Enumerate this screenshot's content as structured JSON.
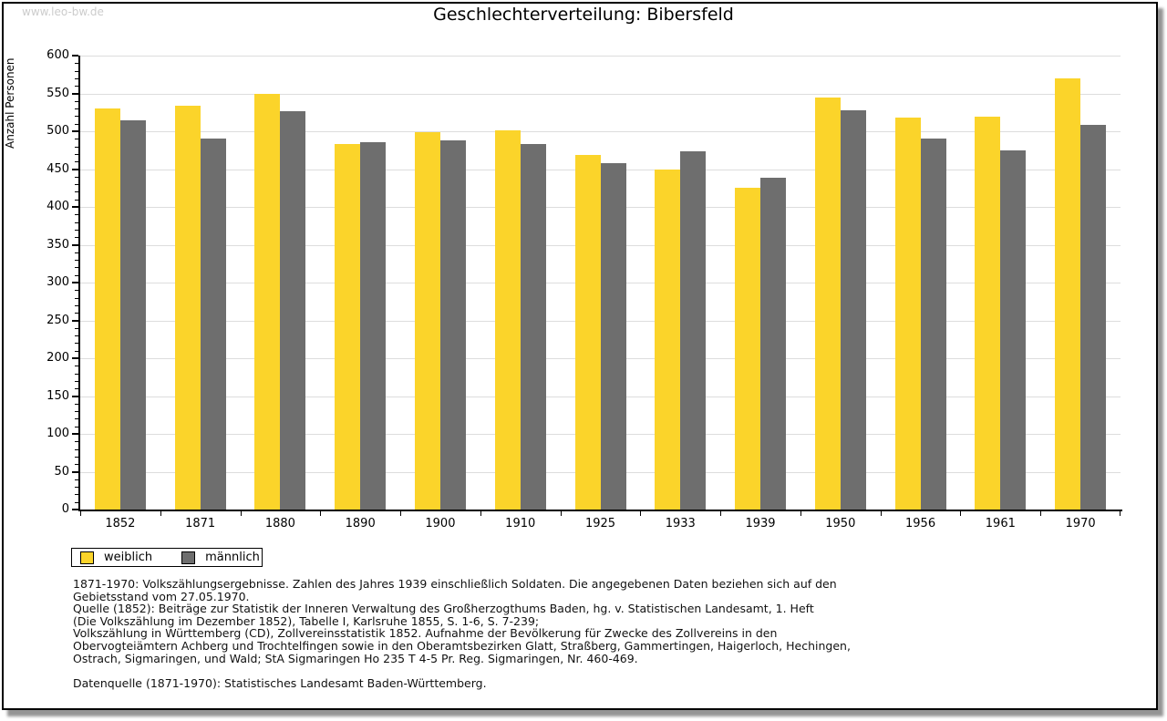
{
  "watermark": "www.leo-bw.de",
  "title": "Geschlechterverteilung: Bibersfeld",
  "chart_data": {
    "type": "bar",
    "title": "Geschlechterverteilung: Bibersfeld",
    "xlabel": "",
    "ylabel": "Anzahl Personen",
    "categories": [
      "1852",
      "1871",
      "1880",
      "1890",
      "1900",
      "1910",
      "1925",
      "1933",
      "1939",
      "1950",
      "1956",
      "1961",
      "1970"
    ],
    "series": [
      {
        "name": "weiblich",
        "color": "#FBD42A",
        "values": [
          530,
          534,
          550,
          483,
          499,
          501,
          469,
          450,
          425,
          545,
          518,
          519,
          570
        ]
      },
      {
        "name": "männlich",
        "color": "#6E6E6E",
        "values": [
          515,
          490,
          526,
          486,
          488,
          483,
          458,
          473,
          438,
          528,
          490,
          475,
          509
        ]
      }
    ],
    "ylim": [
      0,
      600
    ],
    "y_tick_step": 50,
    "y_minor_step": 10,
    "grid": true,
    "gridline_color": "#dddddd",
    "legend_position": "bottom-left"
  },
  "legend": {
    "items": [
      {
        "label": "weiblich",
        "color": "#FBD42A"
      },
      {
        "label": "männlich",
        "color": "#6E6E6E"
      }
    ]
  },
  "footer": {
    "lines": [
      "1871-1970: Volkszählungsergebnisse. Zahlen des Jahres 1939 einschließlich Soldaten. Die angegebenen Daten beziehen sich auf den",
      "Gebietsstand vom 27.05.1970.",
      "Quelle (1852): Beiträge zur Statistik der Inneren Verwaltung des Großherzogthums Baden, hg. v. Statistischen Landesamt, 1. Heft",
      "(Die Volkszählung im Dezember 1852), Tabelle I, Karlsruhe 1855, S. 1-6, S. 7-239;",
      "Volkszählung in Württemberg (CD), Zollvereinsstatistik 1852. Aufnahme der Bevölkerung für Zwecke des Zollvereins in den",
      "Obervogteiämtern Achberg und Trochtelfingen sowie in den Oberamtsbezirken Glatt, Straßberg, Gammertingen, Haigerloch, Hechingen,",
      "Ostrach, Sigmaringen, und Wald; StA Sigmaringen Ho 235 T 4-5 Pr. Reg. Sigmaringen, Nr. 460-469."
    ],
    "datasource": "Datenquelle (1871-1970): Statistisches Landesamt Baden-Württemberg."
  }
}
